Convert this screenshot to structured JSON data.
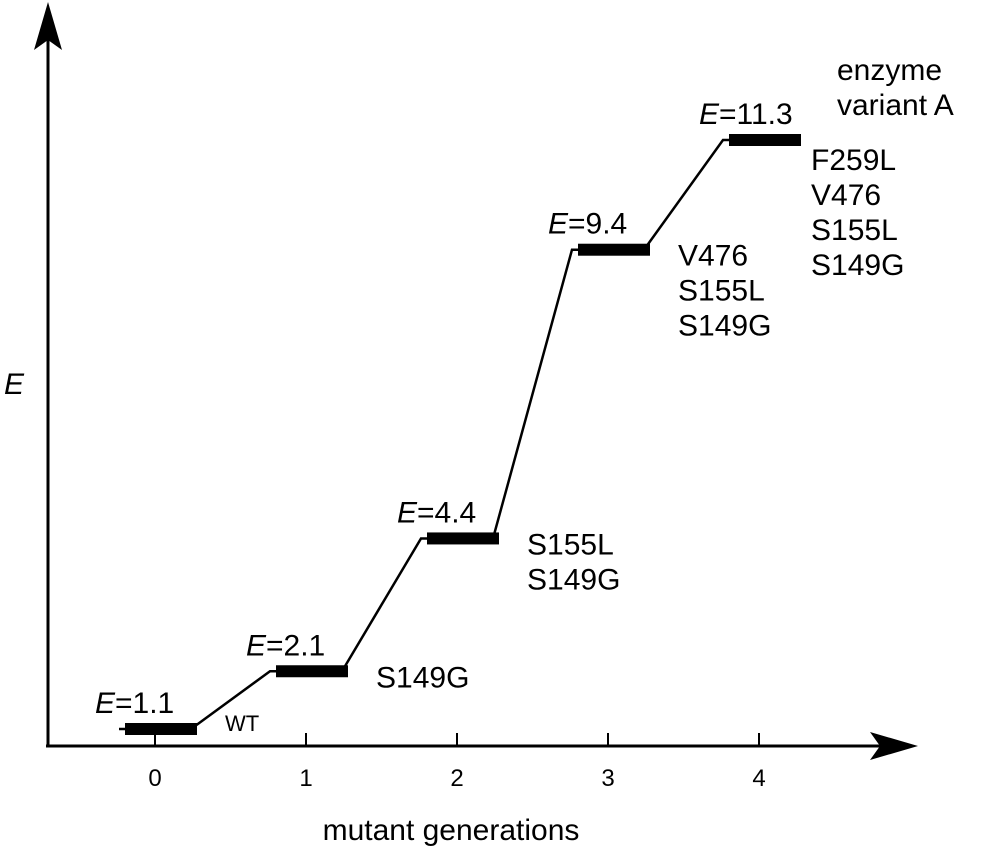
{
  "chart_data": {
    "type": "line",
    "xlabel": "mutant generations",
    "ylabel": "E",
    "x_ticks": [
      "0",
      "1",
      "2",
      "3",
      "4"
    ],
    "points": [
      {
        "x": 0,
        "y": 1.1,
        "value_label": "1.1",
        "mutations": [
          "WT"
        ]
      },
      {
        "x": 1,
        "y": 2.1,
        "value_label": "2.1",
        "mutations": [
          "S149G"
        ]
      },
      {
        "x": 2,
        "y": 4.4,
        "value_label": "4.4",
        "mutations": [
          "S155L",
          "S149G"
        ]
      },
      {
        "x": 3,
        "y": 9.4,
        "value_label": "9.4",
        "mutations": [
          "V476",
          "S155L",
          "S149G"
        ]
      },
      {
        "x": 4,
        "y": 11.3,
        "value_label": "11.3",
        "mutations": [
          "F259L",
          "V476",
          "S155L",
          "S149G"
        ]
      }
    ],
    "annotation_title": [
      "enzyme",
      "variant A"
    ],
    "value_label_prefix": "E",
    "value_label_sep": "="
  }
}
